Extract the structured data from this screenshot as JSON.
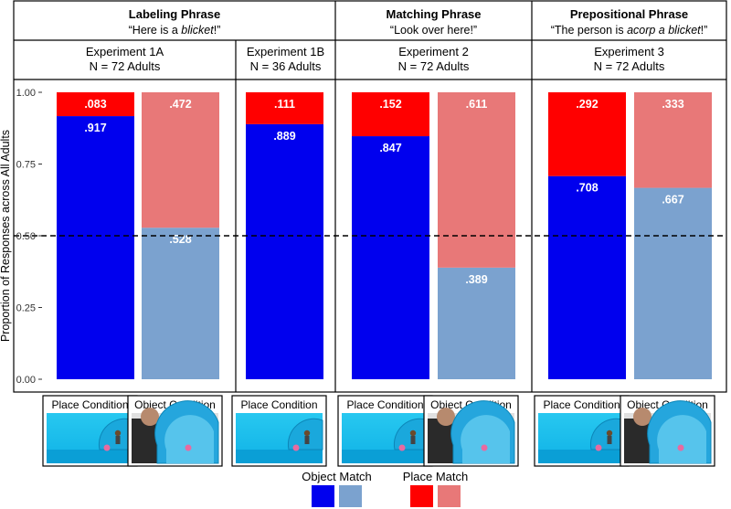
{
  "chart_data": {
    "type": "bar",
    "subtype": "stacked-100",
    "ylabel": "Proportion of Responses across All Adults",
    "ylim": [
      0,
      1
    ],
    "yticks": [
      "0.00",
      "0.25",
      "0.50",
      "0.75",
      "1.00"
    ],
    "reference_line": 0.5,
    "phrases": [
      {
        "title": "Labeling Phrase",
        "quote_pre": "“Here is a ",
        "quote_em": "blicket",
        "quote_post": "!”"
      },
      {
        "title": "Matching Phrase",
        "quote_pre": "“Look over here!”",
        "quote_em": "",
        "quote_post": ""
      },
      {
        "title": "Prepositional Phrase",
        "quote_pre": "“The person is ",
        "quote_em": "acorp a blicket",
        "quote_post": "!”"
      }
    ],
    "experiments": [
      {
        "name": "Experiment 1A",
        "n": "N = 72 Adults"
      },
      {
        "name": "Experiment 1B",
        "n": "N = 36 Adults"
      },
      {
        "name": "Experiment 2",
        "n": "N = 72 Adults"
      },
      {
        "name": "Experiment 3",
        "n": "N = 72 Adults"
      }
    ],
    "series_names": [
      "Object Match",
      "Place Match"
    ],
    "bars": [
      {
        "experiment": "Experiment 1A",
        "condition": "Place Condition",
        "object": 0.917,
        "place": 0.083,
        "object_label": ".917",
        "place_label": ".083"
      },
      {
        "experiment": "Experiment 1A",
        "condition": "Object Condition",
        "object": 0.528,
        "place": 0.472,
        "object_label": ".528",
        "place_label": ".472"
      },
      {
        "experiment": "Experiment 1B",
        "condition": "Place Condition",
        "object": 0.889,
        "place": 0.111,
        "object_label": ".889",
        "place_label": ".111"
      },
      {
        "experiment": "Experiment 2",
        "condition": "Place Condition",
        "object": 0.847,
        "place": 0.152,
        "object_label": ".847",
        "place_label": ".152"
      },
      {
        "experiment": "Experiment 2",
        "condition": "Object Condition",
        "object": 0.389,
        "place": 0.611,
        "object_label": ".389",
        "place_label": ".611"
      },
      {
        "experiment": "Experiment 3",
        "condition": "Place Condition",
        "object": 0.708,
        "place": 0.292,
        "object_label": ".708",
        "place_label": ".292"
      },
      {
        "experiment": "Experiment 3",
        "condition": "Object Condition",
        "object": 0.667,
        "place": 0.333,
        "object_label": ".667",
        "place_label": ".333"
      }
    ],
    "legend": {
      "position": "bottom",
      "groups": [
        {
          "label": "Object Match",
          "colors": [
            "#0000ee",
            "#7ba2cf"
          ]
        },
        {
          "label": "Place Match",
          "colors": [
            "#ff0000",
            "#e87878"
          ]
        }
      ]
    }
  },
  "colors": {
    "object_place_condition": "#0000ee",
    "object_object_condition": "#7ba2cf",
    "place_place_condition": "#ff0000",
    "place_object_condition": "#e87878"
  }
}
